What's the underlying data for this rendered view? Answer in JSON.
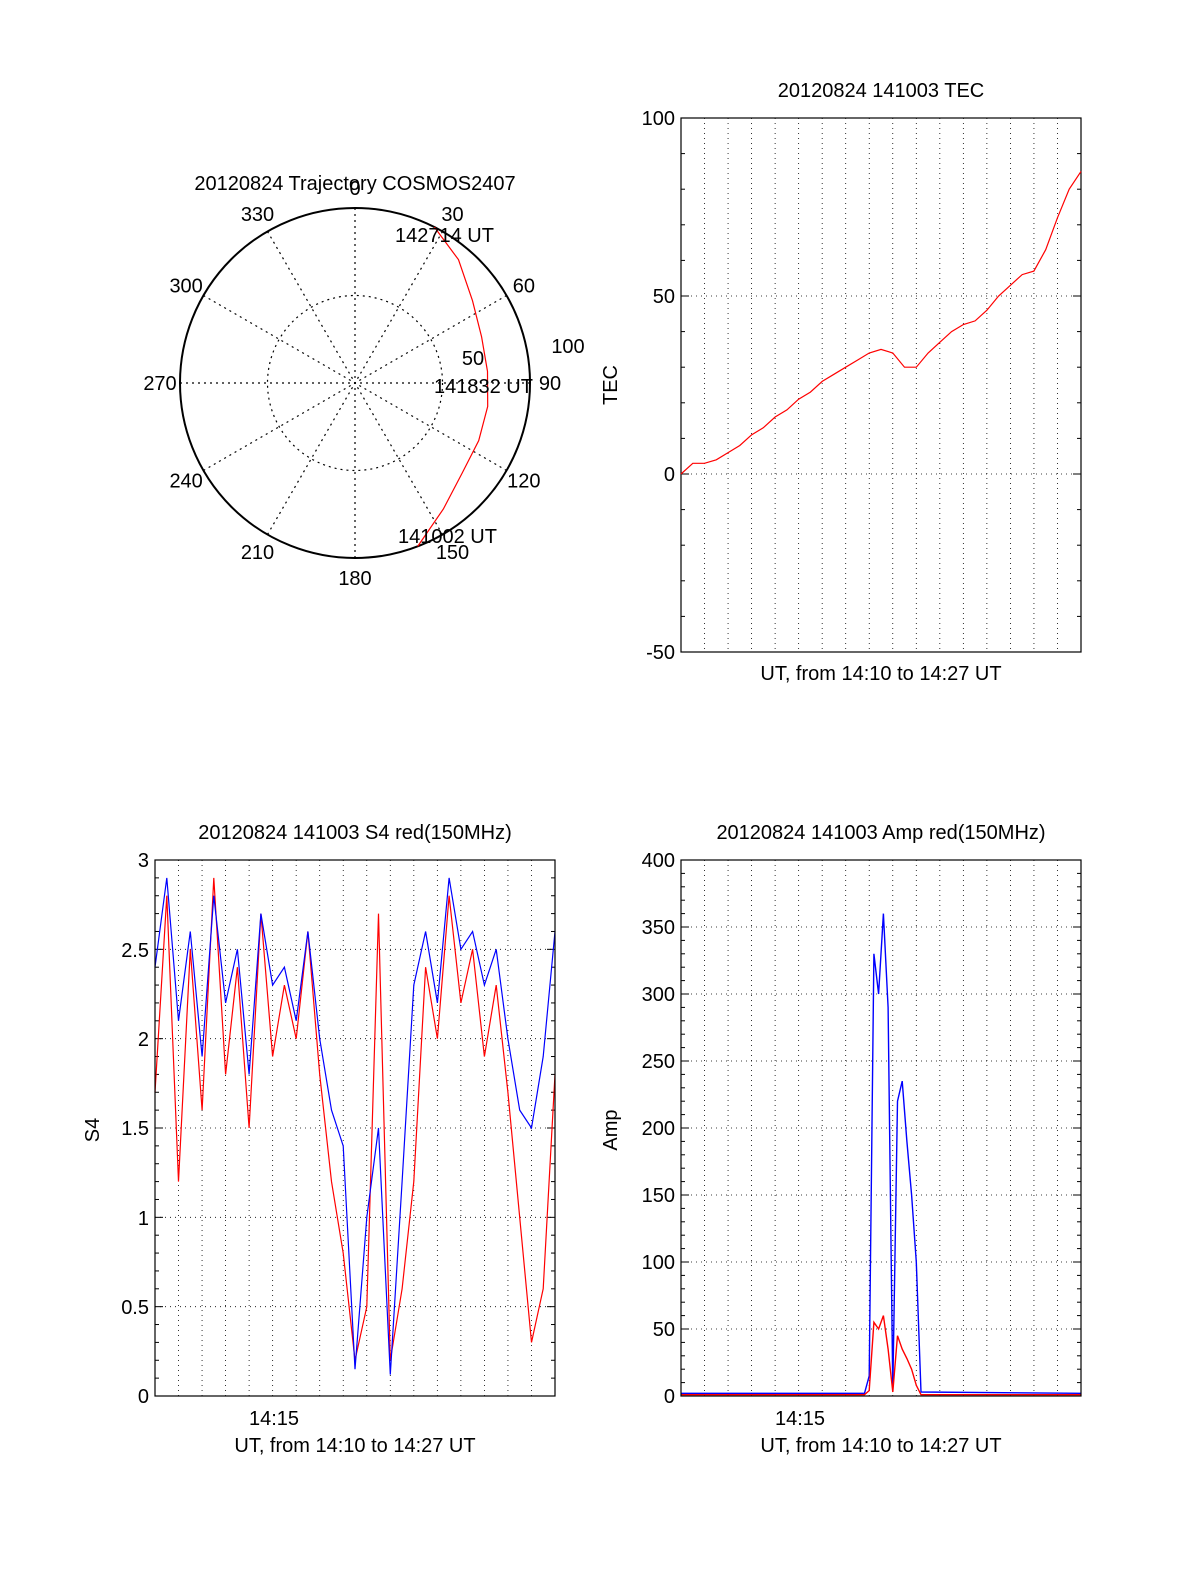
{
  "chart_data": [
    {
      "type": "polar",
      "title": "20120824 Trajectory COSMOS2407",
      "angle_labels": [
        "0",
        "30",
        "60",
        "90",
        "120",
        "150",
        "180",
        "210",
        "240",
        "270",
        "300",
        "330"
      ],
      "radial_labels": [
        "50",
        "100"
      ],
      "rlim": [
        0,
        100
      ],
      "start_label": "141002 UT",
      "mid_label": "141832 UT",
      "end_label": "142714 UT",
      "trajectory": [
        {
          "az": 159,
          "r": 100
        },
        {
          "az": 145,
          "r": 88
        },
        {
          "az": 130,
          "r": 80
        },
        {
          "az": 115,
          "r": 78
        },
        {
          "az": 100,
          "r": 77
        },
        {
          "az": 85,
          "r": 76
        },
        {
          "az": 70,
          "r": 77
        },
        {
          "az": 55,
          "r": 82
        },
        {
          "az": 40,
          "r": 92
        },
        {
          "az": 27,
          "r": 100
        }
      ],
      "trajectory_color": "#ff0000"
    },
    {
      "type": "line",
      "title": "20120824 141003 TEC",
      "xlabel": "UT, from 14:10 to 14:27 UT",
      "ylabel": "TEC",
      "yticks": [
        "100",
        "50",
        "0",
        "-50"
      ],
      "ylim": [
        -50,
        100
      ],
      "xlim": [
        0,
        17
      ],
      "grid": true,
      "series": [
        {
          "color": "#ff0000",
          "x": [
            0,
            0.5,
            1,
            1.5,
            2,
            2.5,
            3,
            3.5,
            4,
            4.5,
            5,
            5.5,
            6,
            6.5,
            7,
            7.5,
            8,
            8.5,
            9,
            9.5,
            10,
            10.5,
            11,
            11.5,
            12,
            12.5,
            13,
            13.5,
            14,
            14.5,
            15,
            15.5,
            16,
            16.5,
            17
          ],
          "values": [
            0,
            3,
            3,
            4,
            6,
            8,
            11,
            13,
            16,
            18,
            21,
            23,
            26,
            28,
            30,
            32,
            34,
            35,
            34,
            30,
            30,
            34,
            37,
            40,
            42,
            43,
            46,
            50,
            53,
            56,
            57,
            63,
            72,
            80,
            85
          ]
        }
      ]
    },
    {
      "type": "line",
      "title": "20120824 141003 S4 red(150MHz)",
      "xlabel": "UT, from 14:10 to 14:27 UT",
      "ylabel": "S4",
      "xtick_label": "14:15",
      "yticks": [
        "3",
        "2.5",
        "2",
        "1.5",
        "1",
        "0.5",
        "0"
      ],
      "ylim": [
        0,
        3
      ],
      "xlim": [
        0,
        17
      ],
      "grid": true,
      "series": [
        {
          "color": "#ff0000",
          "x": [
            0,
            0.5,
            1,
            1.5,
            2,
            2.5,
            3,
            3.5,
            4,
            4.5,
            5,
            5.5,
            6,
            6.5,
            7,
            7.5,
            8,
            8.5,
            9,
            9.5,
            10,
            10.5,
            11,
            11.5,
            12,
            12.5,
            13,
            13.5,
            14,
            14.5,
            15,
            15.5,
            16,
            16.5,
            17
          ],
          "values": [
            1.7,
            2.8,
            1.2,
            2.5,
            1.6,
            2.9,
            1.8,
            2.4,
            1.5,
            2.7,
            1.9,
            2.3,
            2.0,
            2.6,
            1.8,
            1.2,
            0.8,
            0.2,
            0.5,
            2.7,
            0.2,
            0.6,
            1.2,
            2.4,
            2.0,
            2.8,
            2.2,
            2.5,
            1.9,
            2.3,
            1.7,
            1.0,
            0.3,
            0.6,
            1.8
          ]
        },
        {
          "color": "#0000ff",
          "x": [
            0,
            0.5,
            1,
            1.5,
            2,
            2.5,
            3,
            3.5,
            4,
            4.5,
            5,
            5.5,
            6,
            6.5,
            7,
            7.5,
            8,
            8.5,
            9,
            9.5,
            10,
            10.5,
            11,
            11.5,
            12,
            12.5,
            13,
            13.5,
            14,
            14.5,
            15,
            15.5,
            16,
            16.5,
            17
          ],
          "values": [
            2.4,
            2.9,
            2.1,
            2.6,
            1.9,
            2.8,
            2.2,
            2.5,
            1.8,
            2.7,
            2.3,
            2.4,
            2.1,
            2.6,
            2.0,
            1.6,
            1.4,
            0.15,
            1.0,
            1.5,
            0.12,
            1.2,
            2.3,
            2.6,
            2.2,
            2.9,
            2.5,
            2.6,
            2.3,
            2.5,
            2.0,
            1.6,
            1.5,
            1.9,
            2.6
          ]
        }
      ]
    },
    {
      "type": "line",
      "title": "20120824 141003 Amp red(150MHz)",
      "xlabel": "UT, from 14:10 to 14:27 UT",
      "ylabel": "Amp",
      "xtick_label": "14:15",
      "yticks": [
        "400",
        "350",
        "300",
        "250",
        "200",
        "150",
        "100",
        "50",
        "0"
      ],
      "ylim": [
        0,
        400
      ],
      "xlim": [
        0,
        17
      ],
      "grid": true,
      "series": [
        {
          "color": "#ff0000",
          "x": [
            0,
            7.8,
            8.0,
            8.2,
            8.4,
            8.6,
            8.8,
            9.0,
            9.2,
            9.4,
            9.6,
            9.8,
            10.0,
            10.2,
            17
          ],
          "values": [
            1,
            1,
            4,
            55,
            50,
            60,
            35,
            3,
            45,
            35,
            28,
            20,
            8,
            1,
            1
          ]
        },
        {
          "color": "#0000ff",
          "x": [
            0,
            7.8,
            8.0,
            8.2,
            8.4,
            8.6,
            8.8,
            9.0,
            9.2,
            9.4,
            9.6,
            9.8,
            10.0,
            10.2,
            17
          ],
          "values": [
            2,
            2,
            15,
            330,
            300,
            360,
            290,
            5,
            220,
            235,
            190,
            150,
            100,
            3,
            2
          ]
        }
      ]
    }
  ]
}
